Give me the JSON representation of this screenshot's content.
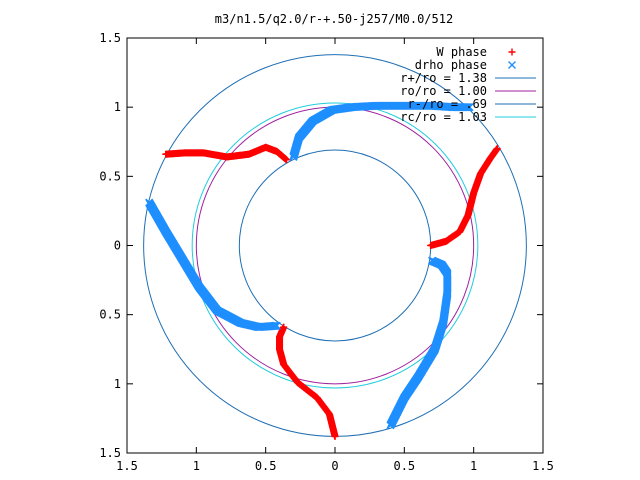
{
  "chart_data": {
    "type": "scatter",
    "title": "m3/n1.5/q2.0/r-+.50-j257/M0.0/512",
    "xlabel": "",
    "ylabel": "",
    "xlim": [
      -1.5,
      1.5
    ],
    "ylim": [
      -1.5,
      1.5
    ],
    "x_ticks": [
      -1.5,
      -1,
      -0.5,
      0,
      0.5,
      1,
      1.5
    ],
    "y_ticks": [
      -1.5,
      -1,
      -0.5,
      0,
      0.5,
      1,
      1.5
    ],
    "x_tick_labels": [
      "1.5",
      "1",
      "0.5",
      "0",
      "0.5",
      "1",
      "1.5"
    ],
    "y_tick_labels": [
      "1.5",
      "1",
      "0.5",
      "0",
      "0.5",
      "1",
      "1.5"
    ],
    "grid": false,
    "legend_position": "top-right",
    "circles": [
      {
        "name": "r+/ro = 1.38",
        "radius": 1.38,
        "color": "#1f6fb4"
      },
      {
        "name": "ro/ro = 1.00",
        "radius": 1.0,
        "color": "#a0209f"
      },
      {
        "name": "r-/ro = .69",
        "radius": 0.69,
        "color": "#1f6fb4"
      },
      {
        "name": "rc/ro = 1.03",
        "radius": 1.03,
        "color": "#22ccdd"
      }
    ],
    "series": [
      {
        "name": "W phase",
        "marker": "+",
        "color": "#ff0000",
        "arms": [
          [
            [
              0.69,
              0.0
            ],
            [
              0.8,
              0.03
            ],
            [
              0.9,
              0.1
            ],
            [
              0.96,
              0.22
            ],
            [
              1.0,
              0.38
            ],
            [
              1.05,
              0.52
            ],
            [
              1.12,
              0.63
            ],
            [
              1.17,
              0.7
            ]
          ],
          [
            [
              -0.35,
              0.62
            ],
            [
              -0.42,
              0.68
            ],
            [
              -0.5,
              0.71
            ],
            [
              -0.62,
              0.66
            ],
            [
              -0.78,
              0.64
            ],
            [
              -0.95,
              0.67
            ],
            [
              -1.08,
              0.67
            ],
            [
              -1.22,
              0.66
            ]
          ],
          [
            [
              -0.37,
              -0.59
            ],
            [
              -0.4,
              -0.66
            ],
            [
              -0.4,
              -0.75
            ],
            [
              -0.37,
              -0.86
            ],
            [
              -0.27,
              -0.99
            ],
            [
              -0.13,
              -1.1
            ],
            [
              -0.04,
              -1.22
            ],
            [
              0.0,
              -1.38
            ]
          ]
        ]
      },
      {
        "name": "drho phase",
        "marker": "x",
        "color": "#1f8fff",
        "arms": [
          [
            [
              -0.3,
              0.64
            ],
            [
              -0.26,
              0.78
            ],
            [
              -0.16,
              0.9
            ],
            [
              -0.02,
              0.98
            ],
            [
              0.12,
              1.0
            ],
            [
              0.3,
              1.01
            ],
            [
              0.5,
              1.01
            ],
            [
              0.7,
              1.01
            ],
            [
              0.85,
              1.0
            ],
            [
              0.97,
              1.0
            ]
          ],
          [
            [
              0.7,
              -0.11
            ],
            [
              0.77,
              -0.14
            ],
            [
              0.81,
              -0.2
            ],
            [
              0.81,
              -0.35
            ],
            [
              0.78,
              -0.56
            ],
            [
              0.72,
              -0.75
            ],
            [
              0.6,
              -0.95
            ],
            [
              0.5,
              -1.1
            ],
            [
              0.4,
              -1.3
            ]
          ],
          [
            [
              -0.42,
              -0.58
            ],
            [
              -0.55,
              -0.59
            ],
            [
              -0.68,
              -0.56
            ],
            [
              -0.85,
              -0.47
            ],
            [
              -0.98,
              -0.3
            ],
            [
              -1.1,
              -0.1
            ],
            [
              -1.22,
              0.1
            ],
            [
              -1.34,
              0.31
            ]
          ]
        ]
      }
    ]
  }
}
